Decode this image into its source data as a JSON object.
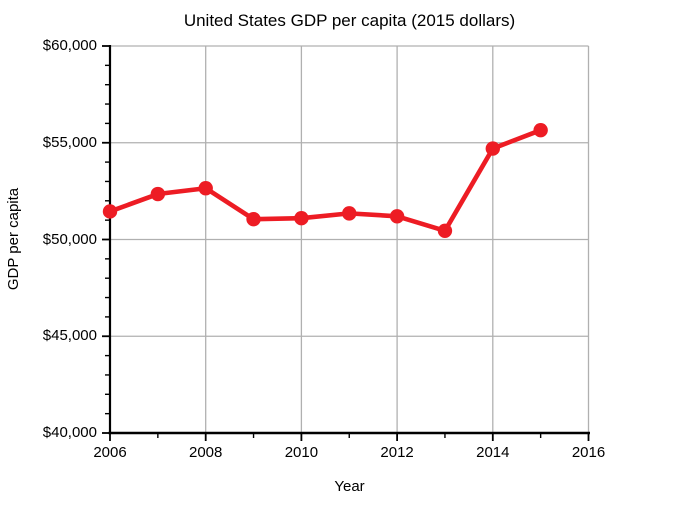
{
  "chart_data": {
    "type": "line",
    "title": "United States GDP per capita (2015 dollars)",
    "xlabel": "Year",
    "ylabel": "GDP per capita",
    "series": [
      {
        "name": "GDP per capita",
        "x": [
          2006,
          2007,
          2008,
          2009,
          2010,
          2011,
          2012,
          2013,
          2014,
          2015
        ],
        "values": [
          51450,
          52350,
          52650,
          51050,
          51100,
          51350,
          51200,
          50450,
          54700,
          55650
        ]
      }
    ],
    "xlim": [
      2006,
      2016
    ],
    "ylim": [
      40000,
      60000
    ],
    "x_major_step": 2,
    "x_minor_step": 1,
    "y_major_step": 5000,
    "y_minor_step": 1000,
    "grid": "major gridlines on, gray",
    "legend_position": "none",
    "x_ticks": [
      {
        "value": 2006,
        "label": "2006"
      },
      {
        "value": 2008,
        "label": "2008"
      },
      {
        "value": 2010,
        "label": "2010"
      },
      {
        "value": 2012,
        "label": "2012"
      },
      {
        "value": 2014,
        "label": "2014"
      },
      {
        "value": 2016,
        "label": "2016"
      }
    ],
    "y_ticks": [
      {
        "value": 40000,
        "label": "$40,000"
      },
      {
        "value": 45000,
        "label": "$45,000"
      },
      {
        "value": 50000,
        "label": "$50,000"
      },
      {
        "value": 55000,
        "label": "$55,000"
      },
      {
        "value": 60000,
        "label": "$60,000"
      }
    ],
    "colors": {
      "line": "#ed1c24",
      "marker": "#ed1c24",
      "grid": "#b0b0b0",
      "axis": "#000000",
      "text": "#000000",
      "background": "#ffffff"
    }
  }
}
